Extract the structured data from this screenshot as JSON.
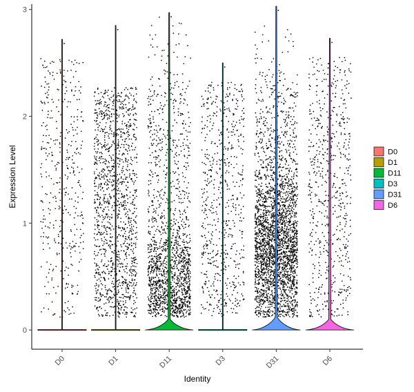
{
  "chart_data": {
    "type": "violin",
    "xlabel": "Identity",
    "ylabel": "Expression Level",
    "ylim": [
      -0.18,
      3.05
    ],
    "yticks": [
      0,
      1,
      2,
      3
    ],
    "categories": [
      "D0",
      "D1",
      "D11",
      "D3",
      "D31",
      "D6"
    ],
    "legend": {
      "position": "right",
      "entries": [
        "D0",
        "D1",
        "D11",
        "D3",
        "D31",
        "D6"
      ]
    },
    "grid": false,
    "series": [
      {
        "name": "D0",
        "color": "#F8766D",
        "max": 2.72,
        "zero_fraction": 0.94,
        "approx_points": 420,
        "violin_peak": 0.0
      },
      {
        "name": "D1",
        "color": "#B79F00",
        "max": 2.85,
        "zero_fraction": 0.85,
        "approx_points": 1400,
        "violin_peak": 0.0
      },
      {
        "name": "D11",
        "color": "#00BA38",
        "max": 2.97,
        "zero_fraction": 0.55,
        "approx_points": 1700,
        "violin_peak": 0.1
      },
      {
        "name": "D3",
        "color": "#00BFC4",
        "max": 2.5,
        "zero_fraction": 0.93,
        "approx_points": 650,
        "violin_peak": 0.0
      },
      {
        "name": "D31",
        "color": "#619CFF",
        "max": 3.03,
        "zero_fraction": 0.45,
        "approx_points": 2900,
        "violin_peak": 0.12
      },
      {
        "name": "D6",
        "color": "#F564E3",
        "max": 2.73,
        "zero_fraction": 0.7,
        "approx_points": 650,
        "violin_peak": 0.1
      }
    ]
  }
}
